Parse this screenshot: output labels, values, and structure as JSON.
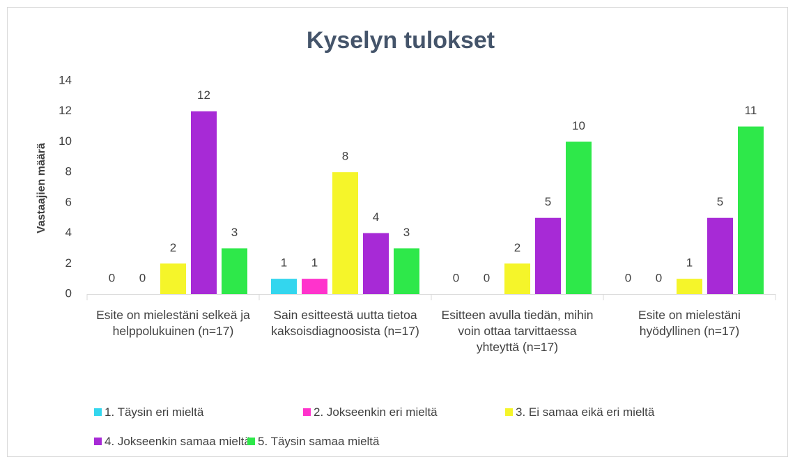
{
  "chart_data": {
    "type": "bar",
    "title": "Kyselyn tulokset",
    "y_label": "Vastaajien määrä",
    "categories": [
      "Esite on mielestäni selkeä ja helppolukuinen (n=17)",
      "Sain esitteestä uutta tietoa kaksoisdiagnoosista (n=17)",
      "Esitteen avulla tiedän, mihin voin ottaa tarvittaessa yhteyttä (n=17)",
      "Esite on mielestäni hyödyllinen (n=17)"
    ],
    "series": [
      {
        "name": "1. Täysin eri mieltä",
        "color": "#33d6ee",
        "values": [
          0,
          1,
          0,
          0
        ]
      },
      {
        "name": "2. Jokseenkin eri mieltä",
        "color": "#ff33cc",
        "values": [
          0,
          1,
          0,
          0
        ]
      },
      {
        "name": "3. Ei samaa eikä eri mieltä",
        "color": "#f5f52a",
        "values": [
          2,
          8,
          2,
          1
        ]
      },
      {
        "name": "4. Jokseenkin samaa mieltä",
        "color": "#a72ad6",
        "values": [
          12,
          4,
          5,
          5
        ]
      },
      {
        "name": "5. Täysin samaa mieltä",
        "color": "#2ee84a",
        "values": [
          3,
          3,
          10,
          11
        ]
      }
    ],
    "ylim": [
      0,
      14
    ],
    "yticks": [
      0,
      2,
      4,
      6,
      8,
      10,
      12,
      14
    ],
    "grid": false
  }
}
